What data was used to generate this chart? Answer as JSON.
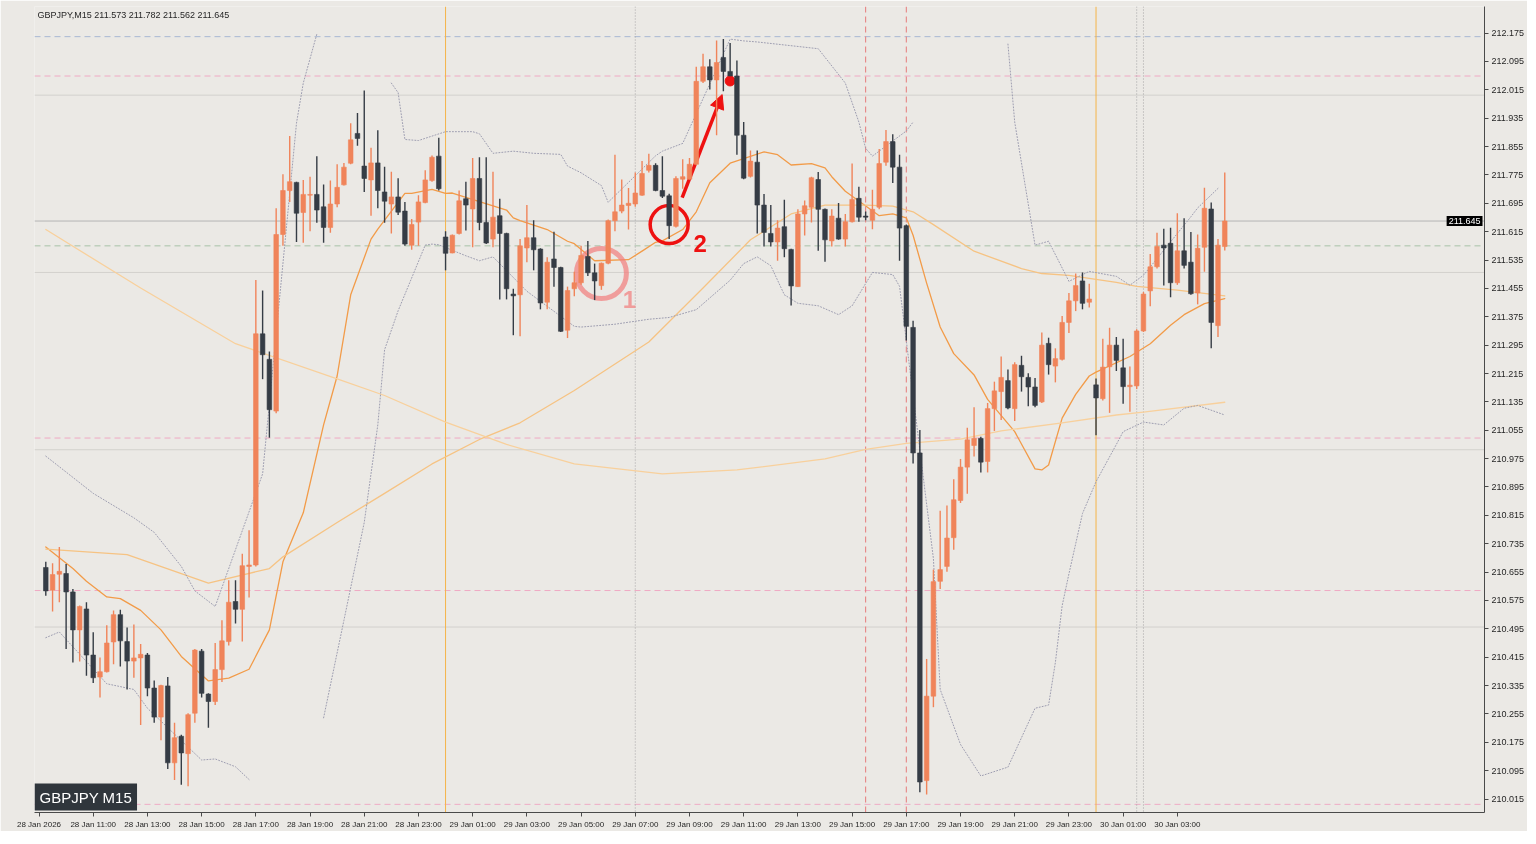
{
  "chart_data": {
    "type": "candlestick",
    "title": "GBPJPY,M15  211.573 211.782 211.562 211.645",
    "annotations": [
      {
        "text": "1",
        "x": "2026-01-29T05:45",
        "y": 211.497
      },
      {
        "text": "2",
        "x": "2026-01-29T08:15",
        "y": 211.635
      },
      "GBPJPY M15"
    ],
    "xlim": [
      "2026-01-28T08:50",
      "2026-01-30T14:20"
    ],
    "ylim": [
      209.977,
      212.25
    ],
    "xticks": [
      {
        "value": "2026-01-28T09:00",
        "label": "28 Jan 2026"
      },
      {
        "value": "2026-01-28T11:00",
        "label": "28 Jan 11:00"
      },
      {
        "value": "2026-01-28T13:00",
        "label": "28 Jan 13:00"
      },
      {
        "value": "2026-01-28T15:00",
        "label": "28 Jan 15:00"
      },
      {
        "value": "2026-01-28T17:00",
        "label": "28 Jan 17:00"
      },
      {
        "value": "2026-01-28T19:00",
        "label": "28 Jan 19:00"
      },
      {
        "value": "2026-01-28T21:00",
        "label": "28 Jan 21:00"
      },
      {
        "value": "2026-01-28T23:00",
        "label": "28 Jan 23:00"
      },
      {
        "value": "2026-01-29T01:00",
        "label": "29 Jan 01:00"
      },
      {
        "value": "2026-01-29T03:00",
        "label": "29 Jan 03:00"
      },
      {
        "value": "2026-01-29T05:00",
        "label": "29 Jan 05:00"
      },
      {
        "value": "2026-01-29T07:00",
        "label": "29 Jan 07:00"
      },
      {
        "value": "2026-01-29T09:00",
        "label": "29 Jan 09:00"
      },
      {
        "value": "2026-01-29T11:00",
        "label": "29 Jan 11:00"
      },
      {
        "value": "2026-01-29T13:00",
        "label": "29 Jan 13:00"
      },
      {
        "value": "2026-01-29T15:00",
        "label": "29 Jan 15:00"
      },
      {
        "value": "2026-01-29T17:00",
        "label": "29 Jan 17:00"
      },
      {
        "value": "2026-01-29T19:00",
        "label": "29 Jan 19:00"
      },
      {
        "value": "2026-01-29T21:00",
        "label": "29 Jan 21:00"
      },
      {
        "value": "2026-01-29T23:00",
        "label": "29 Jan 23:00"
      },
      {
        "value": "2026-01-30T01:00",
        "label": "30 Jan 01:00"
      },
      {
        "value": "2026-01-30T03:00",
        "label": "30 Jan 03:00"
      }
    ],
    "yticks": [
      210.015,
      210.095,
      210.175,
      210.255,
      210.335,
      210.415,
      210.495,
      210.575,
      210.655,
      210.735,
      210.815,
      210.895,
      210.975,
      211.055,
      211.135,
      211.215,
      211.295,
      211.375,
      211.455,
      211.535,
      211.615,
      211.695,
      211.775,
      211.855,
      211.935,
      212.015,
      212.095,
      212.175
    ],
    "x": [
      "2026-01-28T09:15",
      "2026-01-28T09:30",
      "2026-01-28T09:45",
      "2026-01-28T10:00",
      "2026-01-28T10:15",
      "2026-01-28T10:30",
      "2026-01-28T10:45",
      "2026-01-28T11:00",
      "2026-01-28T11:15",
      "2026-01-28T11:30",
      "2026-01-28T11:45",
      "2026-01-28T12:00",
      "2026-01-28T12:15",
      "2026-01-28T12:30",
      "2026-01-28T12:45",
      "2026-01-28T13:00",
      "2026-01-28T13:15",
      "2026-01-28T13:30",
      "2026-01-28T13:45",
      "2026-01-28T14:00",
      "2026-01-28T14:15",
      "2026-01-28T14:30",
      "2026-01-28T14:45",
      "2026-01-28T15:00",
      "2026-01-28T15:15",
      "2026-01-28T15:30",
      "2026-01-28T15:45",
      "2026-01-28T16:00",
      "2026-01-28T16:15",
      "2026-01-28T16:30",
      "2026-01-28T16:45",
      "2026-01-28T17:00",
      "2026-01-28T17:15",
      "2026-01-28T17:30",
      "2026-01-28T17:45",
      "2026-01-28T18:00",
      "2026-01-28T18:15",
      "2026-01-28T18:30",
      "2026-01-28T18:45",
      "2026-01-28T19:00",
      "2026-01-28T19:15",
      "2026-01-28T19:30",
      "2026-01-28T19:45",
      "2026-01-28T20:00",
      "2026-01-28T20:15",
      "2026-01-28T20:30",
      "2026-01-28T20:45",
      "2026-01-28T21:00",
      "2026-01-28T21:15",
      "2026-01-28T21:30",
      "2026-01-28T21:45",
      "2026-01-28T22:00",
      "2026-01-28T22:15",
      "2026-01-28T22:30",
      "2026-01-28T22:45",
      "2026-01-28T23:00",
      "2026-01-28T23:15",
      "2026-01-28T23:30",
      "2026-01-28T23:45",
      "2026-01-29T00:00",
      "2026-01-29T00:15",
      "2026-01-29T00:30",
      "2026-01-29T00:45",
      "2026-01-29T01:00",
      "2026-01-29T01:15",
      "2026-01-29T01:30",
      "2026-01-29T01:45",
      "2026-01-29T02:00",
      "2026-01-29T02:15",
      "2026-01-29T02:30",
      "2026-01-29T02:45",
      "2026-01-29T03:00",
      "2026-01-29T03:15",
      "2026-01-29T03:30",
      "2026-01-29T03:45",
      "2026-01-29T04:00",
      "2026-01-29T04:15",
      "2026-01-29T04:30",
      "2026-01-29T04:45",
      "2026-01-29T05:00",
      "2026-01-29T05:15",
      "2026-01-29T05:30",
      "2026-01-29T05:45",
      "2026-01-29T06:00",
      "2026-01-29T06:15",
      "2026-01-29T06:30",
      "2026-01-29T06:45",
      "2026-01-29T07:00",
      "2026-01-29T07:15",
      "2026-01-29T07:30",
      "2026-01-29T07:45",
      "2026-01-29T08:00",
      "2026-01-29T08:15",
      "2026-01-29T08:30",
      "2026-01-29T08:45",
      "2026-01-29T09:00",
      "2026-01-29T09:15",
      "2026-01-29T09:30",
      "2026-01-29T09:45",
      "2026-01-29T10:00",
      "2026-01-29T10:15",
      "2026-01-29T10:30",
      "2026-01-29T10:45",
      "2026-01-29T11:00",
      "2026-01-29T11:15",
      "2026-01-29T11:30",
      "2026-01-29T11:45",
      "2026-01-29T12:00",
      "2026-01-29T12:15",
      "2026-01-29T12:30",
      "2026-01-29T12:45",
      "2026-01-29T13:00",
      "2026-01-29T13:15",
      "2026-01-29T13:30",
      "2026-01-29T13:45",
      "2026-01-29T14:00",
      "2026-01-29T14:15",
      "2026-01-29T14:30",
      "2026-01-29T14:45",
      "2026-01-29T15:00",
      "2026-01-29T15:15",
      "2026-01-29T15:30",
      "2026-01-29T15:45",
      "2026-01-29T16:00",
      "2026-01-29T16:15",
      "2026-01-29T16:30",
      "2026-01-29T16:45",
      "2026-01-29T17:00",
      "2026-01-29T17:15",
      "2026-01-29T17:30",
      "2026-01-29T17:45",
      "2026-01-29T18:00",
      "2026-01-29T18:15",
      "2026-01-29T18:30",
      "2026-01-29T18:45",
      "2026-01-29T19:00",
      "2026-01-29T19:15",
      "2026-01-29T19:30",
      "2026-01-29T19:45",
      "2026-01-29T20:00",
      "2026-01-29T20:15",
      "2026-01-29T20:30",
      "2026-01-29T20:45",
      "2026-01-29T21:00",
      "2026-01-29T21:15",
      "2026-01-29T21:30",
      "2026-01-29T21:45",
      "2026-01-29T22:00",
      "2026-01-29T22:15",
      "2026-01-29T22:30",
      "2026-01-29T22:45",
      "2026-01-29T23:00",
      "2026-01-29T23:15",
      "2026-01-29T23:30",
      "2026-01-29T23:45",
      "2026-01-30T00:00",
      "2026-01-30T00:15",
      "2026-01-30T00:30",
      "2026-01-30T00:45",
      "2026-01-30T01:00",
      "2026-01-30T01:15",
      "2026-01-30T01:30",
      "2026-01-30T01:45",
      "2026-01-30T02:00",
      "2026-01-30T02:15",
      "2026-01-30T02:30",
      "2026-01-30T02:45",
      "2026-01-30T03:00",
      "2026-01-30T03:15",
      "2026-01-30T03:30",
      "2026-01-30T03:45",
      "2026-01-30T04:00",
      "2026-01-30T04:15",
      "2026-01-30T04:30",
      "2026-01-30T04:45"
    ],
    "ohlc": [
      [
        210.668,
        210.684,
        210.588,
        210.602
      ],
      [
        210.604,
        210.68,
        210.544,
        210.648
      ],
      [
        210.649,
        210.726,
        210.57,
        210.657
      ],
      [
        210.651,
        210.678,
        210.438,
        210.599
      ],
      [
        210.599,
        210.607,
        210.4,
        210.492
      ],
      [
        210.492,
        210.561,
        210.403,
        210.558
      ],
      [
        210.551,
        210.57,
        210.363,
        210.421
      ],
      [
        210.421,
        210.485,
        210.342,
        210.357
      ],
      [
        210.359,
        210.414,
        210.301,
        210.374
      ],
      [
        210.374,
        210.505,
        210.372,
        210.455
      ],
      [
        210.458,
        210.547,
        210.395,
        210.535
      ],
      [
        210.535,
        210.549,
        210.389,
        210.461
      ],
      [
        210.459,
        210.499,
        210.324,
        210.404
      ],
      [
        210.404,
        210.507,
        210.357,
        210.413
      ],
      [
        210.413,
        210.452,
        210.224,
        210.423
      ],
      [
        210.421,
        210.427,
        210.305,
        210.328
      ],
      [
        210.328,
        210.349,
        210.23,
        210.246
      ],
      [
        210.246,
        210.337,
        210.181,
        210.335
      ],
      [
        210.334,
        210.359,
        210.1,
        210.117
      ],
      [
        210.117,
        210.23,
        210.069,
        210.188
      ],
      [
        210.192,
        210.196,
        210.055,
        210.145
      ],
      [
        210.143,
        210.257,
        210.051,
        210.253
      ],
      [
        210.257,
        210.438,
        210.23,
        210.435
      ],
      [
        210.432,
        210.438,
        210.301,
        210.313
      ],
      [
        210.311,
        210.313,
        210.216,
        210.29
      ],
      [
        210.29,
        210.455,
        210.28,
        210.38
      ],
      [
        210.38,
        210.519,
        210.345,
        210.461
      ],
      [
        210.459,
        210.632,
        210.448,
        210.57
      ],
      [
        210.572,
        210.632,
        210.51,
        210.55
      ],
      [
        210.55,
        210.707,
        210.459,
        210.673
      ],
      [
        210.671,
        210.773,
        210.583,
        210.675
      ],
      [
        210.675,
        211.479,
        210.671,
        211.327
      ],
      [
        211.327,
        211.449,
        211.199,
        211.268
      ],
      [
        211.255,
        211.277,
        211.034,
        211.113
      ],
      [
        211.109,
        211.681,
        211.103,
        211.607
      ],
      [
        211.607,
        211.777,
        211.575,
        211.731
      ],
      [
        211.731,
        211.885,
        211.699,
        211.756
      ],
      [
        211.754,
        211.756,
        211.586,
        211.667
      ],
      [
        211.669,
        211.761,
        211.584,
        211.72
      ],
      [
        211.718,
        211.77,
        211.616,
        211.72
      ],
      [
        211.72,
        211.828,
        211.64,
        211.676
      ],
      [
        211.685,
        211.748,
        211.584,
        211.627
      ],
      [
        211.627,
        211.759,
        211.612,
        211.693
      ],
      [
        211.693,
        211.805,
        211.684,
        211.74
      ],
      [
        211.747,
        211.809,
        211.745,
        211.797
      ],
      [
        211.808,
        211.921,
        211.805,
        211.874
      ],
      [
        211.892,
        211.95,
        211.857,
        211.878
      ],
      [
        211.8,
        212.013,
        211.727,
        211.765
      ],
      [
        211.761,
        211.852,
        211.66,
        211.809
      ],
      [
        211.809,
        211.901,
        211.681,
        211.731
      ],
      [
        211.727,
        211.798,
        211.64,
        211.701
      ],
      [
        211.693,
        211.784,
        211.61,
        211.713
      ],
      [
        211.713,
        211.766,
        211.662,
        211.67
      ],
      [
        211.673,
        211.699,
        211.575,
        211.58
      ],
      [
        211.577,
        211.651,
        211.564,
        211.635
      ],
      [
        211.642,
        211.718,
        211.575,
        211.699
      ],
      [
        211.697,
        211.788,
        211.695,
        211.761
      ],
      [
        211.759,
        211.83,
        211.756,
        211.825
      ],
      [
        211.828,
        211.88,
        211.731,
        211.736
      ],
      [
        211.6,
        211.616,
        211.506,
        211.554
      ],
      [
        211.555,
        211.607,
        211.554,
        211.605
      ],
      [
        211.61,
        211.731,
        211.607,
        211.702
      ],
      [
        211.708,
        211.756,
        211.618,
        211.69
      ],
      [
        211.679,
        211.823,
        211.571,
        211.765
      ],
      [
        211.765,
        211.825,
        211.619,
        211.641
      ],
      [
        211.641,
        211.825,
        211.58,
        211.583
      ],
      [
        211.594,
        211.784,
        211.571,
        211.656
      ],
      [
        211.66,
        211.708,
        211.424,
        211.61
      ],
      [
        211.61,
        211.612,
        211.424,
        211.454
      ],
      [
        211.439,
        211.454,
        211.323,
        211.434
      ],
      [
        211.437,
        211.594,
        211.32,
        211.575
      ],
      [
        211.569,
        211.69,
        211.529,
        211.598
      ],
      [
        211.598,
        211.647,
        211.506,
        211.564
      ],
      [
        211.566,
        211.568,
        211.396,
        211.414
      ],
      [
        211.416,
        211.543,
        211.396,
        211.529
      ],
      [
        211.538,
        211.615,
        211.46,
        211.514
      ],
      [
        211.514,
        211.516,
        211.332,
        211.334
      ],
      [
        211.337,
        211.46,
        211.315,
        211.449
      ],
      [
        211.454,
        211.502,
        211.433,
        211.471
      ],
      [
        211.471,
        211.575,
        211.465,
        211.548
      ],
      [
        211.545,
        211.589,
        211.49,
        211.499
      ],
      [
        211.499,
        211.525,
        211.422,
        211.476
      ],
      [
        211.463,
        211.528,
        211.451,
        211.526
      ],
      [
        211.526,
        211.649,
        211.523,
        211.646
      ],
      [
        211.646,
        211.832,
        211.616,
        211.671
      ],
      [
        211.673,
        211.762,
        211.667,
        211.69
      ],
      [
        211.689,
        211.738,
        211.621,
        211.695
      ],
      [
        211.693,
        211.782,
        211.685,
        211.724
      ],
      [
        211.718,
        211.814,
        211.716,
        211.779
      ],
      [
        211.788,
        211.835,
        211.782,
        211.802
      ],
      [
        211.802,
        211.808,
        211.729,
        211.731
      ],
      [
        211.731,
        211.828,
        211.71,
        211.715
      ],
      [
        211.716,
        211.722,
        211.594,
        211.632
      ],
      [
        211.63,
        211.771,
        211.627,
        211.765
      ],
      [
        211.763,
        211.819,
        211.736,
        211.77
      ],
      [
        211.763,
        211.823,
        211.762,
        211.805
      ],
      [
        211.805,
        212.08,
        211.802,
        212.039
      ],
      [
        212.039,
        212.117,
        212.034,
        212.08
      ],
      [
        212.08,
        212.101,
        212.016,
        212.043
      ],
      [
        212.043,
        212.154,
        211.887,
        212.092
      ],
      [
        212.106,
        212.158,
        212.011,
        212.067
      ],
      [
        212.067,
        212.147,
        212.054,
        212.054
      ],
      [
        212.054,
        212.098,
        211.832,
        211.887
      ],
      [
        211.887,
        211.924,
        211.763,
        211.766
      ],
      [
        211.771,
        211.844,
        211.768,
        211.814
      ],
      [
        211.811,
        211.844,
        211.61,
        211.69
      ],
      [
        211.69,
        211.721,
        211.573,
        211.613
      ],
      [
        211.61,
        211.69,
        211.573,
        211.586
      ],
      [
        211.586,
        211.647,
        211.533,
        211.625
      ],
      [
        211.629,
        211.705,
        211.543,
        211.567
      ],
      [
        211.565,
        211.567,
        211.407,
        211.462
      ],
      [
        211.46,
        211.678,
        211.459,
        211.665
      ],
      [
        211.665,
        211.703,
        211.604,
        211.688
      ],
      [
        211.684,
        211.77,
        211.641,
        211.767
      ],
      [
        211.762,
        211.783,
        211.561,
        211.678
      ],
      [
        211.678,
        211.68,
        211.53,
        211.592
      ],
      [
        211.589,
        211.678,
        211.573,
        211.659
      ],
      [
        211.653,
        211.696,
        211.592,
        211.594
      ],
      [
        211.594,
        211.665,
        211.573,
        211.643
      ],
      [
        211.643,
        211.807,
        211.641,
        211.706
      ],
      [
        211.709,
        211.742,
        211.643,
        211.656
      ],
      [
        211.659,
        211.672,
        211.647,
        211.656
      ],
      [
        211.647,
        211.733,
        211.622,
        211.678
      ],
      [
        211.684,
        211.848,
        211.678,
        211.807
      ],
      [
        211.811,
        211.902,
        211.801,
        211.869
      ],
      [
        211.869,
        211.89,
        211.752,
        211.797
      ],
      [
        211.797,
        211.832,
        211.533,
        211.625
      ],
      [
        211.632,
        211.635,
        211.308,
        211.348
      ],
      [
        211.345,
        211.364,
        210.961,
        210.991
      ],
      [
        210.991,
        211.056,
        210.034,
        210.063
      ],
      [
        210.067,
        210.41,
        210.028,
        210.305
      ],
      [
        210.305,
        210.662,
        210.274,
        210.628
      ],
      [
        210.629,
        210.828,
        210.607,
        210.662
      ],
      [
        210.671,
        210.843,
        210.656,
        210.751
      ],
      [
        210.752,
        210.917,
        210.718,
        210.859
      ],
      [
        210.857,
        210.974,
        210.85,
        210.951
      ],
      [
        210.951,
        211.062,
        210.876,
        211.028
      ],
      [
        211.012,
        211.12,
        210.981,
        211.032
      ],
      [
        211.032,
        211.037,
        210.936,
        210.965
      ],
      [
        210.967,
        211.132,
        210.936,
        211.116
      ],
      [
        211.116,
        211.192,
        211.053,
        211.166
      ],
      [
        211.164,
        211.263,
        211.084,
        211.204
      ],
      [
        211.195,
        211.226,
        211.114,
        211.118
      ],
      [
        211.116,
        211.247,
        211.081,
        211.24
      ],
      [
        211.238,
        211.265,
        211.164,
        211.206
      ],
      [
        211.204,
        211.216,
        211.123,
        211.177
      ],
      [
        211.177,
        211.202,
        211.12,
        211.125
      ],
      [
        211.135,
        211.331,
        211.132,
        211.295
      ],
      [
        211.3,
        211.316,
        211.212,
        211.24
      ],
      [
        211.236,
        211.286,
        211.19,
        211.257
      ],
      [
        211.255,
        211.377,
        211.252,
        211.359
      ],
      [
        211.359,
        211.442,
        211.329,
        211.42
      ],
      [
        211.42,
        211.497,
        211.391,
        211.463
      ],
      [
        211.476,
        211.5,
        211.396,
        211.413
      ],
      [
        211.416,
        211.468,
        211.401,
        211.425
      ],
      [
        211.183,
        211.201,
        211.041,
        211.146
      ],
      [
        211.144,
        211.313,
        211.139,
        211.233
      ],
      [
        211.234,
        211.344,
        211.104,
        211.295
      ],
      [
        211.295,
        211.318,
        211.222,
        211.252
      ],
      [
        211.231,
        211.313,
        211.13,
        211.178
      ],
      [
        211.178,
        211.235,
        211.107,
        211.182
      ],
      [
        211.18,
        211.34,
        211.171,
        211.335
      ],
      [
        211.335,
        211.445,
        211.332,
        211.439
      ],
      [
        211.448,
        211.552,
        211.405,
        211.516
      ],
      [
        211.516,
        211.612,
        211.511,
        211.573
      ],
      [
        211.577,
        211.623,
        211.463,
        211.569
      ],
      [
        211.582,
        211.626,
        211.43,
        211.471
      ],
      [
        211.471,
        211.667,
        211.465,
        211.561
      ],
      [
        211.561,
        211.653,
        211.511,
        211.52
      ],
      [
        211.529,
        211.614,
        211.437,
        211.44
      ],
      [
        211.442,
        211.607,
        211.41,
        211.568
      ],
      [
        211.571,
        211.739,
        211.502,
        211.681
      ],
      [
        211.679,
        211.697,
        211.286,
        211.359
      ],
      [
        211.35,
        211.594,
        211.318,
        211.577
      ],
      [
        211.573,
        211.782,
        211.562,
        211.645
      ]
    ],
    "colors": [
      "#353c45",
      "#f0845a",
      "#f0845a",
      "#353c45",
      "#353c45",
      "#f0845a",
      "#353c45",
      "#353c45",
      "#f0845a",
      "#f0845a",
      "#f0845a",
      "#353c45",
      "#353c45",
      "#f0845a",
      "#f0845a",
      "#353c45",
      "#353c45",
      "#f0845a",
      "#353c45",
      "#f0845a",
      "#353c45",
      "#f0845a",
      "#f0845a",
      "#353c45",
      "#353c45",
      "#f0845a",
      "#f0845a",
      "#f0845a",
      "#353c45",
      "#f0845a",
      "#f0845a",
      "#f0845a",
      "#353c45",
      "#353c45",
      "#f0845a",
      "#f0845a",
      "#f0845a",
      "#353c45",
      "#f0845a",
      "#f0845a",
      "#353c45",
      "#353c45",
      "#f0845a",
      "#f0845a",
      "#f0845a",
      "#f0845a",
      "#353c45",
      "#353c45",
      "#f0845a",
      "#353c45",
      "#353c45",
      "#f0845a",
      "#353c45",
      "#353c45",
      "#f0845a",
      "#f0845a",
      "#f0845a",
      "#f0845a",
      "#353c45",
      "#353c45",
      "#f0845a",
      "#f0845a",
      "#353c45",
      "#f0845a",
      "#353c45",
      "#353c45",
      "#f0845a",
      "#353c45",
      "#353c45",
      "#353c45",
      "#f0845a",
      "#f0845a",
      "#353c45",
      "#353c45",
      "#f0845a",
      "#353c45",
      "#353c45",
      "#f0845a",
      "#f0845a",
      "#f0845a",
      "#353c45",
      "#353c45",
      "#f0845a",
      "#f0845a",
      "#f0845a",
      "#f0845a",
      "#f0845a",
      "#f0845a",
      "#f0845a",
      "#f0845a",
      "#353c45",
      "#353c45",
      "#353c45",
      "#f0845a",
      "#f0845a",
      "#f0845a",
      "#f0845a",
      "#f0845a",
      "#353c45",
      "#f0845a",
      "#353c45",
      "#353c45",
      "#353c45",
      "#353c45",
      "#f0845a",
      "#353c45",
      "#353c45",
      "#353c45",
      "#f0845a",
      "#353c45",
      "#353c45",
      "#f0845a",
      "#f0845a",
      "#f0845a",
      "#353c45",
      "#353c45",
      "#f0845a",
      "#353c45",
      "#f0845a",
      "#f0845a",
      "#353c45",
      "#353c45",
      "#f0845a",
      "#f0845a",
      "#f0845a",
      "#353c45",
      "#353c45",
      "#353c45",
      "#353c45",
      "#353c45",
      "#f0845a",
      "#f0845a",
      "#f0845a",
      "#f0845a",
      "#f0845a",
      "#f0845a",
      "#f0845a",
      "#f0845a",
      "#353c45",
      "#f0845a",
      "#f0845a",
      "#f0845a",
      "#353c45",
      "#f0845a",
      "#353c45",
      "#353c45",
      "#353c45",
      "#f0845a",
      "#353c45",
      "#f0845a",
      "#f0845a",
      "#f0845a",
      "#f0845a",
      "#353c45",
      "#f0845a",
      "#353c45",
      "#f0845a",
      "#f0845a",
      "#353c45",
      "#353c45",
      "#f0845a",
      "#f0845a",
      "#f0845a",
      "#f0845a",
      "#f0845a",
      "#353c45",
      "#353c45",
      "#f0845a",
      "#353c45",
      "#353c45",
      "#f0845a",
      "#f0845a",
      "#353c45",
      "#f0845a",
      "#f0845a"
    ],
    "series": [
      {
        "type": "line",
        "color": "#f29b48",
        "line_style": "solid",
        "x": [
          "2026-01-28T09:15",
          "2026-01-28T10:15",
          "2026-01-28T10:45",
          "2026-01-28T11:30",
          "2026-01-28T12:00",
          "2026-01-28T12:45",
          "2026-01-28T13:30",
          "2026-01-28T14:15",
          "2026-01-28T15:15",
          "2026-01-28T16:00",
          "2026-01-28T16:45",
          "2026-01-28T17:30",
          "2026-01-28T18:00",
          "2026-01-28T18:45",
          "2026-01-28T19:30",
          "2026-01-28T20:00",
          "2026-01-28T20:30",
          "2026-01-28T21:15",
          "2026-01-28T21:30",
          "2026-01-28T22:30",
          "2026-01-28T22:45",
          "2026-01-28T23:30",
          "2026-01-29T00:00",
          "2026-01-29T00:15",
          "2026-01-29T02:15",
          "2026-01-29T02:30",
          "2026-01-29T02:45",
          "2026-01-29T03:45",
          "2026-01-29T04:30",
          "2026-01-29T04:45",
          "2026-01-29T05:30",
          "2026-01-29T06:45",
          "2026-01-29T07:15",
          "2026-01-29T07:45",
          "2026-01-29T08:00",
          "2026-01-29T08:45",
          "2026-01-29T09:15",
          "2026-01-29T09:45",
          "2026-01-29T10:30",
          "2026-01-29T11:45",
          "2026-01-29T12:15",
          "2026-01-29T12:45",
          "2026-01-29T13:30",
          "2026-01-29T14:00",
          "2026-01-29T14:15",
          "2026-01-29T14:45",
          "2026-01-29T16:00",
          "2026-01-29T16:30",
          "2026-01-29T17:00",
          "2026-01-29T17:15",
          "2026-01-29T17:45",
          "2026-01-29T18:15",
          "2026-01-29T18:45",
          "2026-01-29T19:30",
          "2026-01-29T20:00",
          "2026-01-29T21:00",
          "2026-01-29T21:45",
          "2026-01-29T22:00",
          "2026-01-29T22:15",
          "2026-01-29T22:45",
          "2026-01-29T23:15",
          "2026-01-29T23:45",
          "2026-01-30T00:00",
          "2026-01-30T01:15",
          "2026-01-30T02:00",
          "2026-01-30T02:45",
          "2026-01-30T03:15",
          "2026-01-30T04:00",
          "2026-01-30T04:45"
        ],
        "values": [
          210.726,
          210.665,
          210.629,
          210.585,
          210.58,
          210.547,
          210.492,
          210.417,
          210.348,
          210.356,
          210.381,
          210.492,
          210.684,
          210.822,
          211.07,
          211.208,
          211.437,
          211.594,
          211.622,
          211.723,
          211.723,
          211.734,
          211.723,
          211.724,
          211.676,
          211.654,
          211.646,
          211.621,
          211.588,
          211.581,
          211.533,
          211.536,
          211.56,
          211.585,
          211.589,
          211.621,
          211.671,
          211.753,
          211.808,
          211.84,
          211.832,
          211.803,
          211.807,
          211.795,
          211.77,
          211.729,
          211.66,
          211.665,
          211.654,
          211.605,
          211.47,
          211.346,
          211.271,
          211.211,
          211.142,
          211.051,
          210.946,
          210.943,
          210.957,
          211.089,
          211.156,
          211.208,
          211.219,
          211.263,
          211.299,
          211.351,
          211.381,
          211.412,
          211.426
        ]
      },
      {
        "type": "line",
        "color": "#f6c383",
        "line_style": "solid",
        "x": [
          "2026-01-28T09:15",
          "2026-01-28T12:15",
          "2026-01-28T15:15",
          "2026-01-28T17:30",
          "2026-01-28T18:00",
          "2026-01-28T20:00",
          "2026-01-28T21:45",
          "2026-01-28T23:30",
          "2026-01-29T01:15",
          "2026-01-29T02:45",
          "2026-01-29T04:45",
          "2026-01-29T07:30",
          "2026-01-29T09:30",
          "2026-01-29T11:15",
          "2026-01-29T12:45",
          "2026-01-29T14:00",
          "2026-01-29T15:30",
          "2026-01-29T16:30",
          "2026-01-29T17:15",
          "2026-01-29T18:00",
          "2026-01-29T19:30",
          "2026-01-29T21:15",
          "2026-01-29T22:00",
          "2026-01-29T23:00",
          "2026-01-30T00:45",
          "2026-01-30T01:30",
          "2026-01-30T03:00",
          "2026-01-30T04:45"
        ],
        "values": [
          210.72,
          210.704,
          210.624,
          210.665,
          210.698,
          210.795,
          210.877,
          210.96,
          211.029,
          211.076,
          211.167,
          211.304,
          211.456,
          211.592,
          211.665,
          211.69,
          211.69,
          211.687,
          211.671,
          211.635,
          211.56,
          211.511,
          211.497,
          211.492,
          211.472,
          211.461,
          211.45,
          211.434
        ]
      },
      {
        "type": "line",
        "color": "#f8d09c",
        "line_style": "solid",
        "x": [
          "2026-01-28T09:15",
          "2026-01-28T12:45",
          "2026-01-28T16:15",
          "2026-01-28T20:00",
          "2026-01-28T21:45",
          "2026-01-29T00:00",
          "2026-01-29T02:15",
          "2026-01-29T04:45",
          "2026-01-29T08:00",
          "2026-01-29T10:45",
          "2026-01-29T14:00",
          "2026-01-29T15:30",
          "2026-01-29T17:00",
          "2026-01-29T19:00",
          "2026-01-29T20:30",
          "2026-01-29T22:45",
          "2026-01-30T00:45",
          "2026-01-30T01:45",
          "2026-01-30T04:45"
        ],
        "values": [
          211.621,
          211.456,
          211.299,
          211.2,
          211.153,
          211.078,
          211.015,
          210.96,
          210.932,
          210.943,
          210.974,
          211.001,
          211.018,
          211.03,
          211.053,
          211.076,
          211.098,
          211.106,
          211.134
        ]
      },
      {
        "type": "line",
        "color": "#9d9db0",
        "line_style": "dotted",
        "x": [
          "2026-01-28T09:15",
          "2026-01-28T11:00",
          "2026-01-28T12:30",
          "2026-01-28T13:15",
          "2026-01-28T14:15",
          "2026-01-28T14:45",
          "2026-01-28T15:30",
          "2026-01-28T17:15",
          "2026-01-28T18:30",
          "2026-01-28T18:45",
          "2026-01-28T19:15",
          "2026-01-28T19:30",
          "2026-01-28T22:00",
          "2026-01-28T22:15",
          "2026-01-28T22:30",
          "2026-01-28T23:00",
          "2026-01-29T00:00",
          "2026-01-29T01:00",
          "2026-01-29T01:15",
          "2026-01-29T01:45",
          "2026-01-29T02:30",
          "2026-01-29T03:15",
          "2026-01-29T04:15",
          "2026-01-29T04:30",
          "2026-01-29T05:00",
          "2026-01-29T05:45",
          "2026-01-29T06:00",
          "2026-01-29T07:45",
          "2026-01-29T08:00",
          "2026-01-29T08:45",
          "2026-01-29T10:30",
          "2026-01-29T11:00",
          "2026-01-29T11:30",
          "2026-01-29T13:45",
          "2026-01-29T14:45",
          "2026-01-29T15:15",
          "2026-01-29T15:30",
          "2026-01-29T15:45",
          "2026-01-29T17:00",
          "2026-01-29T17:15",
          "2026-01-29T17:30",
          "2026-01-29T20:45",
          "2026-01-29T21:00",
          "2026-01-29T21:45",
          "2026-01-29T22:15",
          "2026-01-29T23:00",
          "2026-01-29T23:45",
          "2026-01-30T00:45",
          "2026-01-30T01:15",
          "2026-01-30T01:45",
          "2026-01-30T03:30",
          "2026-01-30T03:45",
          "2026-01-30T04:30"
        ],
        "values": [
          210.982,
          210.877,
          210.808,
          210.767,
          210.671,
          210.602,
          210.558,
          210.932,
          211.921,
          212.034,
          212.172,
          null,
          212.034,
          212.007,
          211.875,
          211.872,
          211.897,
          211.897,
          211.891,
          211.836,
          211.842,
          211.836,
          211.833,
          211.8,
          211.781,
          211.745,
          211.698,
          211.829,
          211.842,
          211.864,
          212.158,
          212.153,
          212.15,
          212.131,
          212.034,
          211.924,
          211.85,
          211.828,
          211.899,
          211.924,
          null,
          212.144,
          211.924,
          211.577,
          211.588,
          211.475,
          211.503,
          211.489,
          211.464,
          211.492,
          211.657,
          211.682,
          211.737
        ]
      },
      {
        "type": "line",
        "color": "#9d9db0",
        "line_style": "dotted",
        "x": [
          "2026-01-28T09:15",
          "2026-01-28T09:45",
          "2026-01-28T11:30",
          "2026-01-28T12:30",
          "2026-01-28T13:00",
          "2026-01-28T15:00",
          "2026-01-28T15:30",
          "2026-01-28T16:15",
          "2026-01-28T16:45",
          "2026-01-28T17:00",
          "2026-01-28T19:30",
          "2026-01-28T20:15",
          "2026-01-28T21:00",
          "2026-01-28T21:30",
          "2026-01-28T21:45",
          "2026-01-28T22:15",
          "2026-01-28T23:15",
          "2026-01-28T23:30",
          "2026-01-28T23:45",
          "2026-01-29T00:45",
          "2026-01-29T01:15",
          "2026-01-29T01:45",
          "2026-01-29T03:00",
          "2026-01-29T04:45",
          "2026-01-29T05:00",
          "2026-01-29T06:15",
          "2026-01-29T07:30",
          "2026-01-29T08:15",
          "2026-01-29T09:15",
          "2026-01-29T10:30",
          "2026-01-29T11:00",
          "2026-01-29T11:30",
          "2026-01-29T12:00",
          "2026-01-29T12:30",
          "2026-01-29T13:00",
          "2026-01-29T13:45",
          "2026-01-29T14:30",
          "2026-01-29T15:00",
          "2026-01-29T15:45",
          "2026-01-29T16:30",
          "2026-01-29T16:45",
          "2026-01-29T18:00",
          "2026-01-29T18:15",
          "2026-01-29T19:00",
          "2026-01-29T19:45",
          "2026-01-29T20:45",
          "2026-01-29T21:45",
          "2026-01-29T22:15",
          "2026-01-29T22:30",
          "2026-01-29T22:45",
          "2026-01-29T23:00",
          "2026-01-29T23:30",
          "2026-01-30T00:00",
          "2026-01-30T00:45",
          "2026-01-30T01:00",
          "2026-01-30T01:45",
          "2026-01-30T02:30",
          "2026-01-30T03:15",
          "2026-01-30T03:45",
          "2026-01-30T04:45"
        ],
        "values": [
          210.47,
          210.486,
          210.34,
          210.324,
          210.271,
          210.125,
          210.128,
          210.106,
          210.07,
          null,
          210.244,
          210.519,
          210.795,
          211.07,
          211.282,
          211.392,
          211.577,
          211.58,
          211.578,
          211.547,
          211.533,
          211.544,
          211.447,
          211.348,
          211.346,
          211.354,
          211.368,
          211.373,
          211.395,
          211.478,
          211.525,
          211.544,
          211.519,
          211.437,
          211.413,
          211.406,
          211.381,
          211.406,
          211.5,
          211.494,
          211.461,
          210.693,
          210.324,
          210.169,
          210.08,
          210.105,
          210.271,
          210.28,
          210.4,
          210.56,
          210.65,
          210.82,
          210.91,
          211.015,
          211.051,
          211.078,
          211.07,
          211.117,
          211.125,
          211.098
        ]
      },
      {
        "type": "scatter",
        "color": "#ee1111",
        "marker": "circle",
        "x": [
          "2026-01-29T10:30"
        ],
        "values": [
          212.04
        ]
      }
    ],
    "ref_lines": [
      {
        "axis": "y",
        "value": 212.165,
        "color": "#a9b8d3",
        "line_style": "dashed"
      },
      {
        "axis": "y",
        "value": 212.054,
        "color": "#efaac4",
        "line_style": "dashed"
      },
      {
        "axis": "y",
        "value": 212.0,
        "color": "#d3d1cd",
        "line_style": "solid"
      },
      {
        "axis": "y",
        "value": 211.645,
        "color": "#b4b4b4",
        "line_style": "solid",
        "label": "211.645"
      },
      {
        "axis": "y",
        "value": 211.575,
        "color": "#a9c2a9",
        "line_style": "dashed"
      },
      {
        "axis": "y",
        "value": 211.5,
        "color": "#d3d1cd",
        "line_style": "solid"
      },
      {
        "axis": "y",
        "value": 211.033,
        "color": "#efaac4",
        "line_style": "dashed"
      },
      {
        "axis": "y",
        "value": 211.0,
        "color": "#d3d1cd",
        "line_style": "solid"
      },
      {
        "axis": "y",
        "value": 210.603,
        "color": "#efaac4",
        "line_style": "dashed"
      },
      {
        "axis": "y",
        "value": 210.5,
        "color": "#d3d1cd",
        "line_style": "solid"
      },
      {
        "axis": "y",
        "value": 210.0,
        "color": "#efaac4",
        "line_style": "dashed"
      },
      {
        "axis": "x",
        "value": "2026-01-29T00:00",
        "color": "#f5b44a",
        "line_style": "solid"
      },
      {
        "axis": "x",
        "value": "2026-01-30T00:00",
        "color": "#f5b44a",
        "line_style": "solid"
      },
      {
        "axis": "x",
        "value": "2026-01-29T07:00",
        "color": "#a6a6a6",
        "line_style": "dotted"
      },
      {
        "axis": "x",
        "value": "2026-01-29T15:30",
        "color": "#e77b7b",
        "line_style": "dashed"
      },
      {
        "axis": "x",
        "value": "2026-01-29T17:00",
        "color": "#e77b7b",
        "line_style": "dashed"
      },
      {
        "axis": "x",
        "value": "2026-01-30T01:30",
        "color": "#a6a6a6",
        "line_style": "dotted"
      },
      {
        "axis": "x",
        "value": "2026-01-30T01:45",
        "color": "#a6a6a6",
        "line_style": "dotted"
      }
    ]
  }
}
